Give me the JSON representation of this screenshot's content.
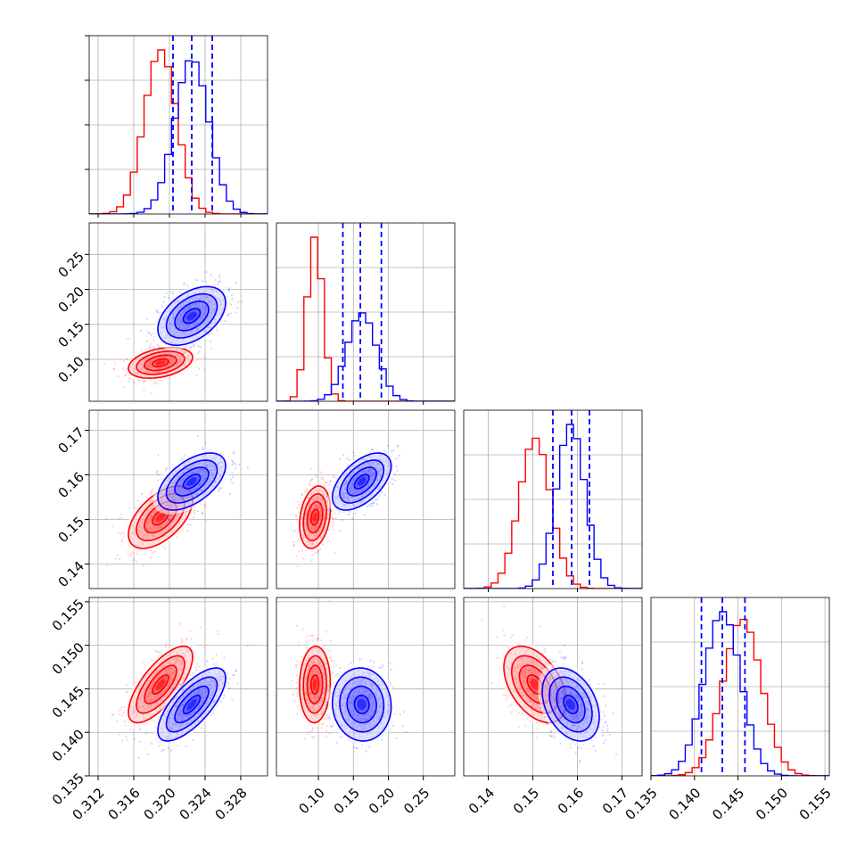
{
  "chart_data": {
    "type": "corner",
    "params": [
      {
        "range": [
          0.311,
          0.331
        ],
        "ticks": [
          0.312,
          0.316,
          0.32,
          0.324,
          0.328
        ],
        "tick_labels": [
          "0.312",
          "0.316",
          "0.320",
          "0.324",
          "0.328"
        ]
      },
      {
        "range": [
          0.04,
          0.295
        ],
        "ticks": [
          0.1,
          0.15,
          0.2,
          0.25
        ],
        "tick_labels": [
          "0.10",
          "0.15",
          "0.20",
          "0.25"
        ]
      },
      {
        "range": [
          0.1345,
          0.1745
        ],
        "ticks": [
          0.14,
          0.15,
          0.16,
          0.17
        ],
        "tick_labels": [
          "0.14",
          "0.15",
          "0.16",
          "0.17"
        ]
      },
      {
        "range": [
          0.135,
          0.1555
        ],
        "ticks": [
          0.135,
          0.14,
          0.145,
          0.15,
          0.155
        ],
        "tick_labels": [
          "0.135",
          "0.140",
          "0.145",
          "0.150",
          "0.155"
        ]
      }
    ],
    "series": [
      {
        "color": "#ff0000",
        "mean": [
          0.319,
          0.095,
          0.1505,
          0.1455
        ],
        "std": [
          0.0018,
          0.011,
          0.0035,
          0.0022
        ]
      },
      {
        "color": "#0000ff",
        "mean": [
          0.3225,
          0.162,
          0.1585,
          0.1432
        ],
        "std": [
          0.0019,
          0.021,
          0.0032,
          0.0021
        ]
      }
    ],
    "correlations": {
      "0-1": [
        0.35,
        0.45
      ],
      "0-2": [
        0.55,
        0.55
      ],
      "0-3": [
        0.72,
        0.72
      ],
      "1-2": [
        0.25,
        0.55
      ],
      "1-3": [
        0.05,
        -0.05
      ],
      "2-3": [
        -0.45,
        -0.35
      ]
    },
    "diagonal_quantiles": [
      {
        "series": "blue",
        "values": [
          0.3204,
          0.3225,
          0.3248
        ]
      },
      {
        "series": "blue",
        "values": [
          0.135,
          0.16,
          0.19
        ]
      },
      {
        "series": "blue",
        "values": [
          0.1545,
          0.1587,
          0.1627
        ]
      },
      {
        "series": "blue",
        "values": [
          0.1408,
          0.1432,
          0.1458
        ]
      }
    ],
    "contour_levels_sigma": [
      0.5,
      1.0,
      1.5,
      2.0
    ],
    "grid": true,
    "title": "",
    "xlabel": "",
    "ylabel": ""
  }
}
